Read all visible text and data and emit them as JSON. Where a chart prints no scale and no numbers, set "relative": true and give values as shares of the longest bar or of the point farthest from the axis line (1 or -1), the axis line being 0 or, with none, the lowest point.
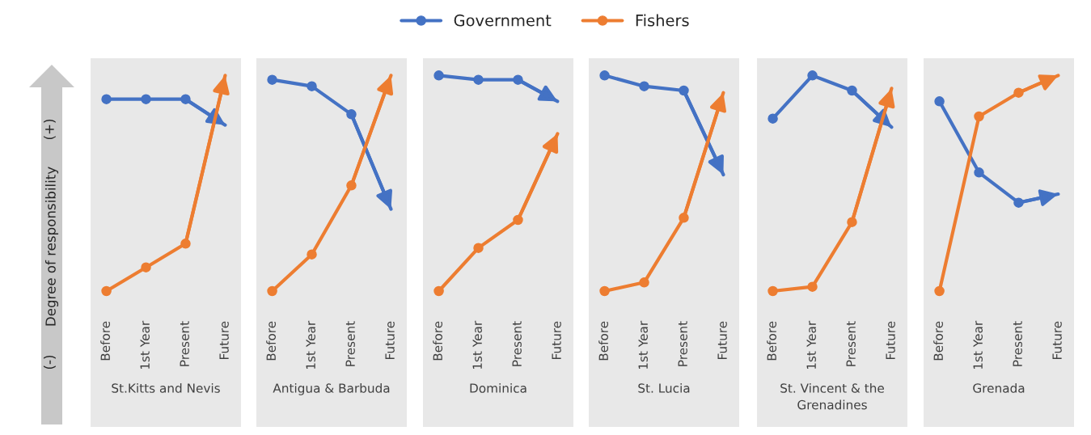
{
  "chart_data": [
    {
      "type": "line",
      "title": "St.Kitts and Nevis",
      "ylabel": "Degree of responsibility",
      "annotations": [
        "(+)",
        "(-)"
      ],
      "categories": [
        "Before",
        "1st Year",
        "Present",
        "Future"
      ],
      "relative": true,
      "legend": "top",
      "marker": "circle",
      "tick_labels": "x",
      "series": [
        {
          "name": "Government",
          "color": "#4472c4",
          "values": [
            0.89,
            0.89,
            0.89,
            0.77
          ]
        },
        {
          "name": "Fishers",
          "color": "#ed7d31",
          "values": [
            0,
            0.11,
            0.22,
            1
          ]
        }
      ]
    },
    {
      "type": "line",
      "title": "Antigua & Barbuda",
      "categories": [
        "Before",
        "1st Year",
        "Present",
        "Future"
      ],
      "relative": true,
      "marker": "circle",
      "tick_labels": "x",
      "series": [
        {
          "color": "#4472c4",
          "values": [
            0.98,
            0.95,
            0.82,
            0.38
          ]
        },
        {
          "color": "#ed7d31",
          "values": [
            0,
            0.17,
            0.49,
            1
          ]
        }
      ]
    },
    {
      "type": "line",
      "title": "Dominica",
      "categories": [
        "Before",
        "1st Year",
        "Present",
        "Future"
      ],
      "relative": true,
      "marker": "circle",
      "tick_labels": "x",
      "series": [
        {
          "color": "#4472c4",
          "values": [
            1,
            0.98,
            0.98,
            0.88
          ]
        },
        {
          "color": "#ed7d31",
          "values": [
            0,
            0.2,
            0.33,
            0.73
          ]
        }
      ]
    },
    {
      "type": "line",
      "title": "St. Lucia",
      "categories": [
        "Before",
        "1st Year",
        "Present",
        "Future"
      ],
      "relative": true,
      "marker": "circle",
      "tick_labels": "x",
      "series": [
        {
          "color": "#4472c4",
          "values": [
            1,
            0.95,
            0.93,
            0.54
          ]
        },
        {
          "color": "#ed7d31",
          "values": [
            0,
            0.04,
            0.34,
            0.92
          ]
        }
      ]
    },
    {
      "type": "line",
      "title": "St. Vincent & the Grenadines",
      "categories": [
        "Before",
        "1st Year",
        "Present",
        "Future"
      ],
      "relative": true,
      "marker": "circle",
      "tick_labels": "x",
      "series": [
        {
          "color": "#4472c4",
          "values": [
            0.8,
            1,
            0.93,
            0.76
          ]
        },
        {
          "color": "#ed7d31",
          "values": [
            0,
            0.02,
            0.32,
            0.94
          ]
        }
      ]
    },
    {
      "type": "line",
      "title": "Grenada",
      "categories": [
        "Before",
        "1st Year",
        "Present",
        "Future"
      ],
      "relative": true,
      "marker": "circle",
      "tick_labels": "x",
      "series": [
        {
          "color": "#4472c4",
          "values": [
            0.88,
            0.55,
            0.41,
            0.45
          ]
        },
        {
          "color": "#ed7d31",
          "values": [
            0,
            0.81,
            0.92,
            1
          ]
        }
      ]
    }
  ]
}
